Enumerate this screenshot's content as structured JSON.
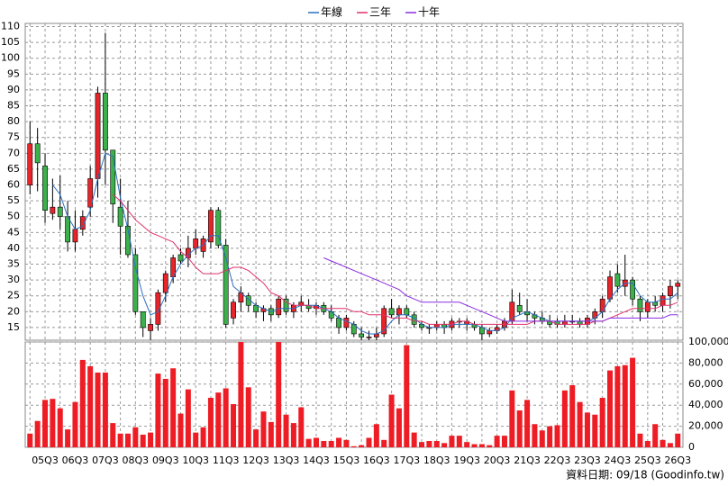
{
  "footnote": "資料日期: 09/18 (Goodinfo.tw)",
  "chart_data": [
    {
      "type": "candlestick",
      "up_color": "#e8242b",
      "down_color": "#3cb04a",
      "grid": true,
      "ylim": [
        11,
        111
      ],
      "yticks": [
        15,
        20,
        25,
        30,
        35,
        40,
        45,
        50,
        55,
        60,
        65,
        70,
        75,
        80,
        85,
        90,
        95,
        100,
        105,
        110
      ],
      "open": [
        60,
        73,
        66,
        51,
        53,
        50,
        42,
        46,
        53,
        62,
        89,
        71,
        53,
        47,
        38,
        20,
        14,
        16,
        26,
        31,
        38,
        37,
        40,
        39,
        42,
        52,
        41,
        18,
        23,
        25,
        22,
        20,
        21,
        19,
        24,
        20,
        22,
        22,
        21,
        22,
        20,
        18,
        15,
        16,
        13,
        12,
        12,
        13,
        21,
        19,
        21,
        19,
        16,
        15,
        15,
        16,
        15,
        17,
        16,
        16,
        15,
        13,
        14,
        15,
        17,
        22,
        20,
        19,
        18,
        17,
        17,
        16,
        17,
        17,
        16,
        18,
        20,
        24,
        32,
        28,
        30,
        24,
        20,
        23,
        22,
        25,
        28
      ],
      "high": [
        80,
        78,
        70,
        62,
        63,
        55,
        52,
        52,
        66,
        91,
        108,
        71,
        62,
        55,
        40,
        20,
        18,
        27,
        33,
        38,
        40,
        44,
        46,
        44,
        53,
        53,
        43,
        24,
        28,
        26,
        23,
        22,
        22,
        25,
        25,
        23,
        25,
        24,
        23,
        23,
        22,
        19,
        19,
        17,
        15,
        14,
        15,
        22,
        24,
        22,
        22,
        20,
        17,
        16,
        17,
        17,
        18,
        18,
        18,
        17,
        16,
        15,
        16,
        18,
        27,
        26,
        24,
        20,
        20,
        19,
        18,
        19,
        19,
        18,
        19,
        21,
        25,
        33,
        35,
        38,
        31,
        25,
        24,
        25,
        26,
        30,
        30
      ],
      "low": [
        57,
        58,
        48,
        49,
        46,
        39,
        39,
        44,
        50,
        56,
        60,
        48,
        38,
        37,
        19,
        12,
        11,
        14,
        23,
        29,
        35,
        34,
        38,
        37,
        40,
        40,
        15,
        16,
        20,
        20,
        18,
        17,
        17,
        18,
        19,
        18,
        20,
        20,
        19,
        19,
        17,
        13,
        14,
        12,
        11,
        11,
        11,
        12,
        18,
        16,
        18,
        15,
        14,
        13,
        14,
        13,
        14,
        15,
        14,
        14,
        11,
        12,
        13,
        14,
        16,
        19,
        17,
        16,
        16,
        15,
        15,
        15,
        16,
        15,
        15,
        16,
        18,
        23,
        26,
        25,
        22,
        17,
        18,
        20,
        20,
        21,
        24
      ],
      "close": [
        73,
        67,
        52,
        53,
        50,
        42,
        46,
        50,
        62,
        89,
        71,
        54,
        47,
        38,
        20,
        15,
        16,
        26,
        32,
        37,
        36,
        40,
        43,
        43,
        52,
        41,
        16,
        23,
        26,
        22,
        20,
        21,
        19,
        24,
        20,
        22,
        23,
        21,
        22,
        20,
        18,
        15,
        18,
        13,
        12,
        12,
        13,
        21,
        19,
        21,
        19,
        16,
        15,
        15,
        16,
        15,
        17,
        17,
        17,
        15,
        13,
        14,
        15,
        17,
        23,
        20,
        19,
        18,
        17,
        16,
        16,
        17,
        17,
        16,
        18,
        20,
        24,
        31,
        28,
        30,
        24,
        20,
        23,
        22,
        25,
        28,
        29
      ],
      "series": [
        {
          "name": "年線",
          "color": "#2a6fc0",
          "values": [
            null,
            null,
            null,
            60,
            57,
            50,
            46,
            47,
            52,
            62,
            70,
            69,
            56,
            46,
            34,
            25,
            19,
            20,
            25,
            31,
            35,
            38,
            40,
            41,
            44,
            44,
            37,
            28,
            26,
            24,
            22,
            21,
            20,
            21,
            21,
            21,
            22,
            22,
            22,
            21,
            20,
            18,
            17,
            16,
            14,
            13,
            13,
            14,
            17,
            19,
            19,
            18,
            16,
            15,
            15,
            15,
            16,
            16,
            16,
            16,
            15,
            14,
            14,
            15,
            18,
            19,
            20,
            19,
            18,
            17,
            17,
            17,
            17,
            17,
            17,
            18,
            20,
            24,
            27,
            29,
            29,
            25,
            23,
            23,
            24,
            24,
            26
          ]
        },
        {
          "name": "三年",
          "color": "#e0306a",
          "values": [
            null,
            null,
            null,
            null,
            null,
            null,
            null,
            null,
            null,
            null,
            null,
            57,
            55,
            52,
            49,
            47,
            45,
            44,
            43,
            42,
            39,
            37,
            34,
            32,
            32,
            32,
            33,
            34,
            34,
            33,
            31,
            29,
            26,
            25,
            23,
            22,
            22,
            22,
            21,
            21,
            21,
            21,
            21,
            20,
            20,
            19,
            19,
            19,
            18,
            18,
            18,
            17,
            17,
            16,
            16,
            16,
            16,
            17,
            17,
            16,
            16,
            16,
            16,
            16,
            16,
            16,
            16,
            17,
            17,
            17,
            16,
            16,
            16,
            16,
            16,
            17,
            17,
            18,
            19,
            20,
            21,
            21,
            21,
            21,
            22,
            22,
            23
          ]
        },
        {
          "name": "十年",
          "color": "#8a2be2",
          "values": [
            null,
            null,
            null,
            null,
            null,
            null,
            null,
            null,
            null,
            null,
            null,
            null,
            null,
            null,
            null,
            null,
            null,
            null,
            null,
            null,
            null,
            null,
            null,
            null,
            null,
            null,
            null,
            null,
            null,
            null,
            null,
            null,
            null,
            null,
            null,
            null,
            null,
            null,
            null,
            37,
            36,
            35,
            34,
            33,
            32,
            31,
            30,
            29,
            28,
            27,
            25,
            24,
            23,
            23,
            23,
            23,
            23,
            23,
            22,
            21,
            20,
            19,
            18,
            17,
            17,
            17,
            17,
            17,
            17,
            17,
            17,
            17,
            17,
            17,
            17,
            17,
            17,
            18,
            18,
            18,
            18,
            18,
            18,
            18,
            18,
            19,
            19
          ]
        }
      ]
    },
    {
      "type": "bar",
      "color": "#ee1c24",
      "grid": true,
      "ylim": [
        0,
        100000
      ],
      "yticks": [
        0,
        {
          "value": 20000,
          "label": "20,000"
        },
        {
          "value": 40000,
          "label": "40,000"
        },
        {
          "value": 60000,
          "label": "60,000"
        },
        {
          "value": 80000,
          "label": "80,000"
        },
        {
          "value": 100000,
          "label": "100,000"
        }
      ],
      "categories": [
        null,
        null,
        "05Q3",
        null,
        null,
        null,
        "06Q3",
        null,
        null,
        null,
        "07Q3",
        null,
        null,
        null,
        "08Q3",
        null,
        null,
        null,
        "09Q3",
        null,
        null,
        null,
        "10Q3",
        null,
        null,
        null,
        "11Q3",
        null,
        null,
        null,
        "12Q3",
        null,
        null,
        null,
        "13Q3",
        null,
        null,
        null,
        "14Q3",
        null,
        null,
        null,
        "15Q3",
        null,
        null,
        null,
        "16Q3",
        null,
        null,
        null,
        "17Q3",
        null,
        null,
        null,
        "18Q3",
        null,
        null,
        null,
        "19Q3",
        null,
        null,
        null,
        "20Q3",
        null,
        null,
        null,
        "21Q3",
        null,
        null,
        null,
        "22Q3",
        null,
        null,
        null,
        "23Q3",
        null,
        null,
        null,
        "24Q3",
        null,
        null,
        null,
        "25Q3",
        null,
        null,
        null,
        "26Q3"
      ],
      "values": [
        13000,
        25000,
        45000,
        46000,
        37000,
        17000,
        43000,
        83000,
        77000,
        71000,
        71000,
        23000,
        13000,
        13000,
        19000,
        12000,
        14000,
        70000,
        65000,
        75000,
        32000,
        55000,
        14000,
        19000,
        47000,
        52000,
        56000,
        41000,
        100000,
        57000,
        17000,
        34000,
        24000,
        100000,
        31000,
        23000,
        38000,
        8000,
        9000,
        6000,
        6000,
        9000,
        7000,
        1000,
        2000,
        9000,
        22000,
        7000,
        50000,
        37000,
        97000,
        14000,
        5000,
        6000,
        6000,
        4000,
        11000,
        11000,
        5000,
        3000,
        3000,
        2000,
        11000,
        11000,
        54000,
        35000,
        45000,
        22000,
        16000,
        20000,
        21000,
        54000,
        59000,
        43000,
        33000,
        31000,
        47000,
        73000,
        77000,
        78000,
        85000,
        13000,
        6000,
        22000,
        7000,
        4000,
        13000
      ]
    }
  ]
}
